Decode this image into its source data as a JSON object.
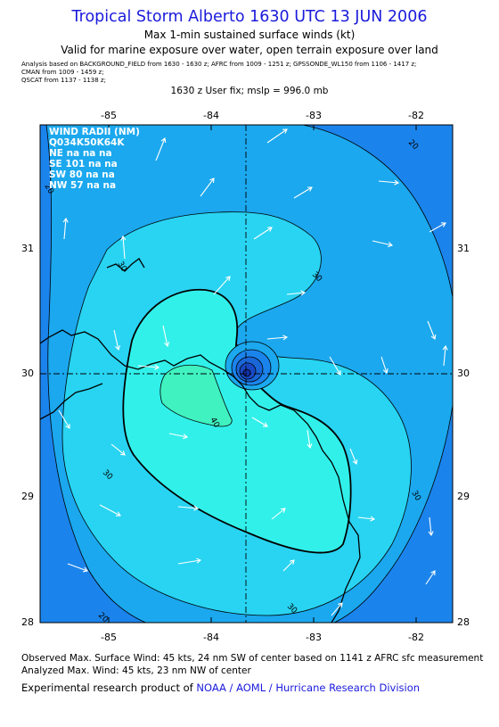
{
  "header": {
    "title": "Tropical Storm Alberto 1630 UTC 13 JUN 2006",
    "subtitle_1": "Max 1-min sustained surface winds (kt)",
    "subtitle_2": "Valid for marine exposure over water, open terrain exposure over land",
    "analysis_line_1": "Analysis based on   BACKGROUND_FIELD from 1630 - 1630 z;   AFRC from 1009 - 1251 z;   GPSSONDE_WL150 from 1106 - 1417 z;",
    "analysis_line_2": "CMAN from 1009 - 1459 z;",
    "analysis_line_3": "QSCAT from 1137 - 1138 z;",
    "fix_line": "1630 z User fix; mslp = 996.0 mb"
  },
  "map": {
    "lon_ticks": [
      "-85",
      "-84",
      "-83",
      "-82"
    ],
    "lat_ticks": [
      "31",
      "30",
      "29",
      "28"
    ],
    "center": {
      "lon": -83.6,
      "lat": 29.96
    },
    "contour_labels": [
      "20",
      "20",
      "30",
      "30",
      "30",
      "30",
      "30",
      "40",
      "20"
    ],
    "colors": {
      "ocean_outer": "#1b84ec",
      "band_20": "#1ba8ee",
      "band_30": "#28d4f2",
      "band_40": "#31f0ea",
      "band_45": "#40f2c0",
      "coast": "#000000",
      "vector": "#ffffff"
    }
  },
  "wind_radii": {
    "title": "WIND RADII (NM)",
    "header": "Q034K50K64K",
    "rows": [
      {
        "quad": "NE",
        "r34": "na",
        "r50": "na",
        "r64": "na"
      },
      {
        "quad": "SE",
        "r34": "101",
        "r50": "na",
        "r64": "na"
      },
      {
        "quad": "SW",
        "r34": "80",
        "r50": "na",
        "r64": "na"
      },
      {
        "quad": "NW",
        "r34": "57",
        "r50": "na",
        "r64": "na"
      }
    ]
  },
  "footer": {
    "observed": "Observed Max. Surface Wind: 45 kts, 24 nm SW of center based on 1141 z AFRC sfc measurement",
    "analyzed": "Analyzed Max. Wind: 45 kts, 23 nm NW of center",
    "credit_prefix": "Experimental research product of ",
    "credit_link": "NOAA / AOML / Hurricane Research Division"
  }
}
